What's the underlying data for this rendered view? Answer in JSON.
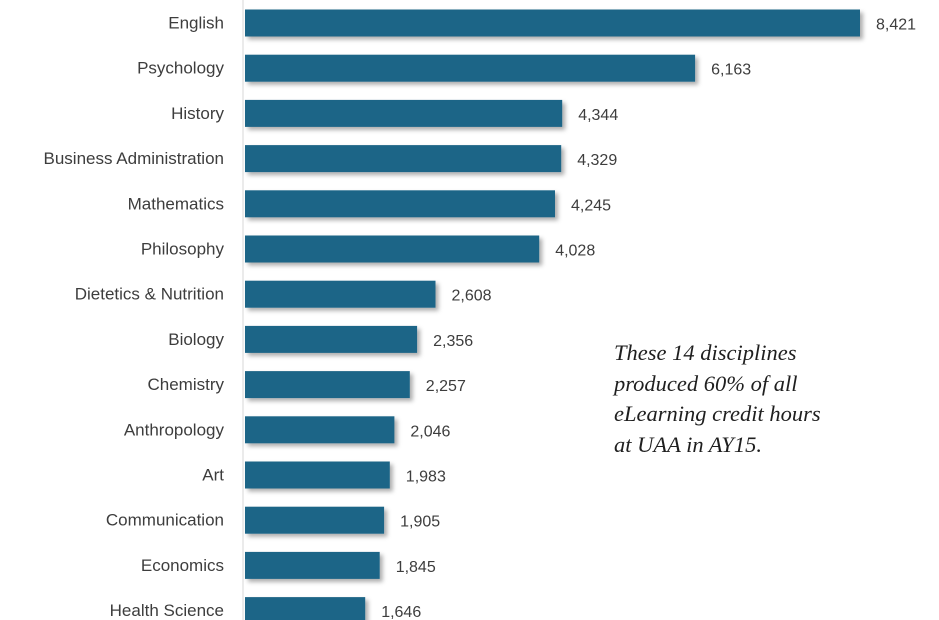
{
  "chart_data": {
    "type": "bar",
    "orientation": "horizontal",
    "categories": [
      "English",
      "Psychology",
      "History",
      "Business Administration",
      "Mathematics",
      "Philosophy",
      "Dietetics & Nutrition",
      "Biology",
      "Chemistry",
      "Anthropology",
      "Art",
      "Communication",
      "Economics",
      "Health Science"
    ],
    "values": [
      8421,
      6163,
      4344,
      4329,
      4245,
      4028,
      2608,
      2356,
      2257,
      2046,
      1983,
      1905,
      1845,
      1646
    ],
    "value_labels": [
      "8,421",
      "6,163",
      "4,344",
      "4,329",
      "4,245",
      "4,028",
      "2,608",
      "2,356",
      "2,257",
      "2,046",
      "1,983",
      "1,905",
      "1,845",
      "1,646"
    ],
    "xlim": [
      0,
      8421
    ],
    "grid": false,
    "legend": "none",
    "bar_color": "#1f6587",
    "annotation": [
      "These 14 disciplines",
      "produced 60% of all",
      "eLearning credit hours",
      "at UAA in AY15."
    ]
  }
}
